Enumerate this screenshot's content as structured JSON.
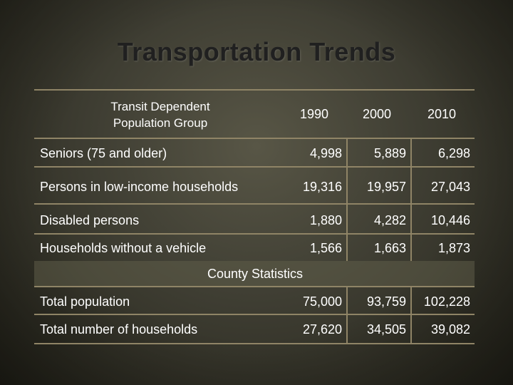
{
  "title": "Transportation Trends",
  "table": {
    "header_group": "Transit Dependent Population Group",
    "years": [
      "1990",
      "2000",
      "2010"
    ],
    "rows": [
      {
        "label": "Seniors (75 and older)",
        "values": [
          "4,998",
          "5,889",
          "6,298"
        ]
      },
      {
        "label": "Persons in low-income households",
        "values": [
          "19,316",
          "19,957",
          "27,043"
        ]
      },
      {
        "label": "Disabled persons",
        "values": [
          "1,880",
          "4,282",
          "10,446"
        ]
      },
      {
        "label": "Households without a vehicle",
        "values": [
          "1,566",
          "1,663",
          "1,873"
        ]
      }
    ],
    "section_label": "County Statistics",
    "county_rows": [
      {
        "label": "Total population",
        "values": [
          "75,000",
          "93,759",
          "102,228"
        ]
      },
      {
        "label": "Total number of households",
        "values": [
          "27,620",
          "34,505",
          "39,082"
        ]
      }
    ]
  }
}
